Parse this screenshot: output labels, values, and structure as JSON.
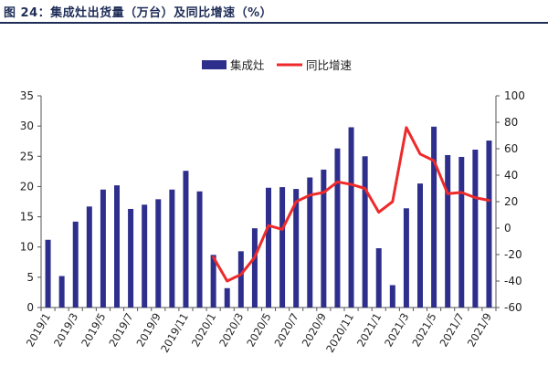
{
  "title": "图 24：集成灶出货量（万台）及同比增速（%）",
  "colors": {
    "bar": "#2e2f8c",
    "line": "#ee2a2a",
    "title": "#1f2d57"
  },
  "chart_data": {
    "type": "bar",
    "categories": [
      "2019/1",
      "2019/2",
      "2019/3",
      "2019/4",
      "2019/5",
      "2019/6",
      "2019/7",
      "2019/8",
      "2019/9",
      "2019/10",
      "2019/11",
      "2019/12",
      "2020/1",
      "2020/2",
      "2020/3",
      "2020/4",
      "2020/5",
      "2020/6",
      "2020/7",
      "2020/8",
      "2020/9",
      "2020/10",
      "2020/11",
      "2020/12",
      "2021/1",
      "2021/2",
      "2021/3",
      "2021/4",
      "2021/5",
      "2021/6",
      "2021/7",
      "2021/8",
      "2021/9"
    ],
    "tick_labels": [
      "2019/1",
      "2019/3",
      "2019/5",
      "2019/7",
      "2019/9",
      "2019/11",
      "2020/1",
      "2020/3",
      "2020/5",
      "2020/7",
      "2020/9",
      "2020/11",
      "2021/1",
      "2021/3",
      "2021/5",
      "2021/7",
      "2021/9"
    ],
    "series": [
      {
        "name": "集成灶",
        "type": "bar",
        "axis": "left",
        "values": [
          11.2,
          5.2,
          14.2,
          16.7,
          19.5,
          20.2,
          16.3,
          17.0,
          17.9,
          19.5,
          22.6,
          19.2,
          8.7,
          3.2,
          9.3,
          13.1,
          19.8,
          19.9,
          19.6,
          21.5,
          22.8,
          26.3,
          29.8,
          25.0,
          9.8,
          3.7,
          16.4,
          20.5,
          29.9,
          25.2,
          24.9,
          26.1,
          27.6
        ]
      },
      {
        "name": "同比增速",
        "type": "line",
        "axis": "right",
        "values": [
          null,
          null,
          null,
          null,
          null,
          null,
          null,
          null,
          null,
          null,
          null,
          null,
          -22,
          -40,
          -35,
          -22,
          2,
          -1,
          20,
          25,
          27,
          35,
          33,
          30,
          12,
          20,
          76,
          56,
          51,
          26,
          27,
          23,
          21
        ]
      }
    ],
    "ylim_left": [
      0,
      35
    ],
    "yticks_left": [
      0,
      5,
      10,
      15,
      20,
      25,
      30,
      35
    ],
    "ylim_right": [
      -60,
      100
    ],
    "yticks_right": [
      -60,
      -40,
      -20,
      0,
      20,
      40,
      60,
      80,
      100
    ],
    "grid": false,
    "legend_position": "top-center"
  }
}
